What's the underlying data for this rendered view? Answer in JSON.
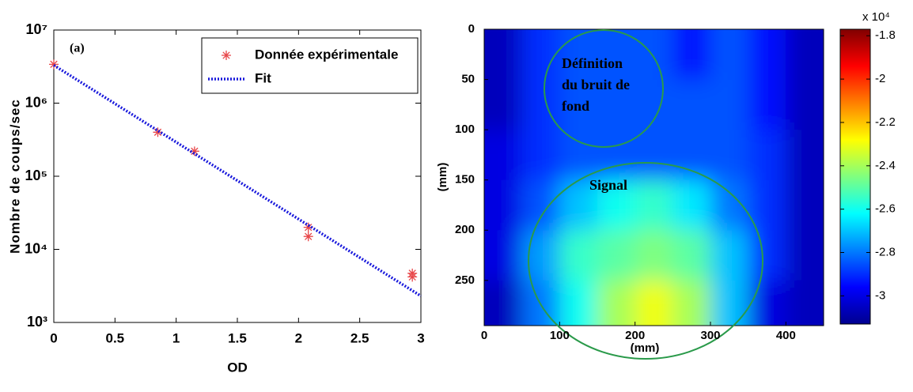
{
  "chart_data": [
    {
      "type": "scatter",
      "annotation": "(a)",
      "xlabel": "OD",
      "ylabel": "Nombre de coups/sec",
      "xlim": [
        0,
        3
      ],
      "xticks": [
        0,
        0.5,
        1,
        1.5,
        2,
        2.5,
        3
      ],
      "ylim": [
        1000,
        10000000
      ],
      "log_y": true,
      "yticks": [
        {
          "value": 1000,
          "label": "10³"
        },
        {
          "value": 10000,
          "label": "10⁴"
        },
        {
          "value": 100000,
          "label": "10⁵"
        },
        {
          "value": 1000000,
          "label": "10⁶"
        },
        {
          "value": 10000000,
          "label": "10⁷"
        }
      ],
      "legend": "upper right",
      "series": [
        {
          "name": "Donnée expérimentale",
          "type": "scatter",
          "color": "#e8474a",
          "x": [
            0,
            0.85,
            1.15,
            2.08,
            2.08,
            2.93,
            2.93
          ],
          "values": [
            3400000,
            400000,
            220000,
            20000,
            15000,
            4700,
            4200
          ]
        },
        {
          "name": "Fit",
          "type": "line",
          "color": "#1a1adc",
          "x": [
            0,
            3
          ],
          "values": [
            3300000,
            2300
          ]
        }
      ]
    },
    {
      "type": "heatmap",
      "xlabel": "(mm)",
      "ylabel": "(mm)",
      "xlim": [
        0,
        450
      ],
      "xticks": [
        0,
        100,
        200,
        300,
        400
      ],
      "ylim": [
        0,
        295
      ],
      "yticks": [
        0,
        50,
        100,
        150,
        200,
        250
      ],
      "xbins": [
        0,
        50,
        100,
        150,
        200,
        250,
        300,
        350,
        400,
        450
      ],
      "ybins": [
        0,
        50,
        100,
        150,
        200,
        250,
        295
      ],
      "z": [
        [
          -3.05,
          -2.9,
          -2.85,
          -2.85,
          -2.85,
          -2.95,
          -2.85,
          -2.95,
          -3.05
        ],
        [
          -3.05,
          -2.9,
          -2.85,
          -2.85,
          -2.85,
          -2.85,
          -2.85,
          -2.95,
          -3.05
        ],
        [
          -3.0,
          -2.9,
          -2.85,
          -2.85,
          -2.85,
          -2.85,
          -2.85,
          -2.9,
          -3.05
        ],
        [
          -3.0,
          -2.85,
          -2.7,
          -2.6,
          -2.55,
          -2.65,
          -2.8,
          -2.9,
          -3.05
        ],
        [
          -3.0,
          -2.75,
          -2.55,
          -2.5,
          -2.45,
          -2.5,
          -2.7,
          -2.9,
          -3.05
        ],
        [
          -3.05,
          -2.8,
          -2.6,
          -2.4,
          -2.3,
          -2.4,
          -2.7,
          -3.0,
          -3.05
        ]
      ],
      "clim": [
        -3.13,
        -1.77
      ],
      "colorbar_label": "x 10⁴",
      "colorbar_ticks": [
        -1.8,
        -2,
        -2.2,
        -2.4,
        -2.6,
        -2.8,
        -3
      ],
      "annotations": [
        "Définition",
        "du bruit de",
        "fond",
        "Signal"
      ]
    }
  ]
}
